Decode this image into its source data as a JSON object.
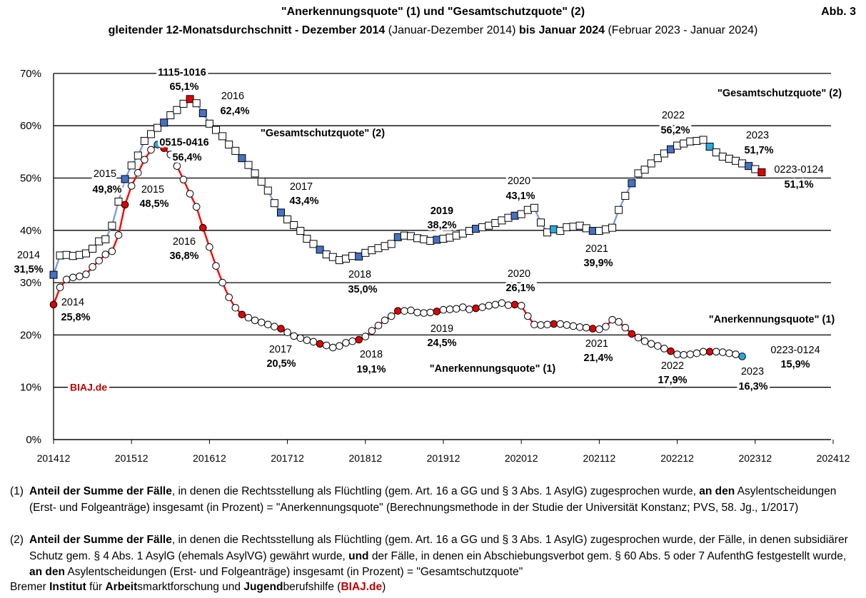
{
  "header": {
    "title": "\"Anerkennungsquote\" (1) und \"Gesamtschutzquote\" (2)",
    "subtitle_bold1": "gleitender 12-Monatsdurchschnitt - Dezember 2014",
    "subtitle_normal1": " (Januar-Dezember 2014) ",
    "subtitle_bold2": "bis Januar 2024",
    "subtitle_normal2": " (Februar 2023 - Januar 2024)",
    "figure_label": "Abb. 3"
  },
  "chart_data": {
    "type": "line",
    "title": "\"Anerkennungsquote\" (1) und \"Gesamtschutzquote\" (2)",
    "x_start": "201412",
    "x_ticks": [
      "201412",
      "201512",
      "201612",
      "201712",
      "201812",
      "201912",
      "202012",
      "202112",
      "202212",
      "202312",
      "202412"
    ],
    "y_ticks": [
      "0%",
      "10%",
      "20%",
      "30%",
      "40%",
      "50%",
      "60%",
      "70%"
    ],
    "ylim": [
      0,
      70
    ],
    "grid": true,
    "watermark": "BIAJ.de",
    "series": [
      {
        "name": "\"Gesamtschutzquote\" (2)",
        "marker": "square",
        "line_color": "#7f9fd3",
        "highlight_color": "#4472c4",
        "values": [
          31.5,
          35.2,
          35.3,
          35.1,
          35.3,
          35.6,
          36.5,
          37.9,
          38.3,
          40.9,
          45.5,
          49.8,
          52.4,
          54.3,
          57.1,
          58.4,
          59.6,
          60.6,
          62.0,
          63.0,
          64.2,
          65.1,
          64.3,
          62.4,
          60.4,
          59.2,
          58.0,
          56.4,
          55.2,
          53.8,
          52.5,
          50.9,
          49.3,
          47.6,
          45.2,
          43.4,
          42.1,
          41.0,
          39.9,
          38.4,
          37.4,
          36.3,
          35.4,
          34.9,
          34.3,
          34.6,
          35.1,
          35.0,
          35.7,
          36.2,
          36.6,
          37.0,
          37.4,
          38.7,
          39.0,
          38.9,
          38.5,
          38.3,
          38.0,
          38.2,
          38.4,
          38.6,
          39.0,
          39.4,
          39.9,
          40.3,
          40.6,
          40.9,
          41.4,
          41.9,
          42.4,
          42.8,
          43.1,
          43.9,
          44.3,
          41.5,
          39.6,
          40.2,
          39.9,
          40.6,
          40.7,
          40.9,
          40.4,
          39.9,
          39.9,
          40.2,
          40.5,
          43.9,
          46.6,
          49.0,
          50.9,
          51.6,
          52.8,
          53.8,
          54.7,
          55.5,
          56.2,
          56.6,
          57.0,
          57.1,
          57.3,
          56.0,
          54.9,
          54.1,
          53.7,
          53.3,
          52.8,
          52.3,
          51.7,
          51.1
        ],
        "highlights": [
          0,
          11,
          17,
          23,
          29,
          35,
          41,
          47,
          53,
          59,
          65,
          71,
          77,
          83,
          89,
          95,
          101,
          107
        ]
      },
      {
        "name": "\"Anerkennungsquote\" (1)",
        "marker": "circle",
        "line_color": "#ff0000",
        "highlight_color": "#e00000",
        "values": [
          25.8,
          29.1,
          30.6,
          31.0,
          31.2,
          31.6,
          33.0,
          34.2,
          35.4,
          36.0,
          39.1,
          44.9,
          48.5,
          51.0,
          53.5,
          55.4,
          56.4,
          55.7,
          54.5,
          52.3,
          49.7,
          47.0,
          44.5,
          40.5,
          36.8,
          33.2,
          30.0,
          27.2,
          25.2,
          23.9,
          23.3,
          22.8,
          22.4,
          22.0,
          21.6,
          21.2,
          20.5,
          19.8,
          19.4,
          19.0,
          18.7,
          18.3,
          18.0,
          17.6,
          17.9,
          18.5,
          18.8,
          19.1,
          19.7,
          20.8,
          21.8,
          22.8,
          23.6,
          24.6,
          24.6,
          24.7,
          24.3,
          24.2,
          24.3,
          24.5,
          24.8,
          24.9,
          25.0,
          25.3,
          24.9,
          25.1,
          25.3,
          25.6,
          25.8,
          26.1,
          25.7,
          25.8,
          25.6,
          23.6,
          22.0,
          21.9,
          22.0,
          22.1,
          22.1,
          21.9,
          21.7,
          21.5,
          21.4,
          21.2,
          21.1,
          21.6,
          22.9,
          22.5,
          21.4,
          20.2,
          19.5,
          18.8,
          18.3,
          17.9,
          17.4,
          16.9,
          16.3,
          16.2,
          16.3,
          16.5,
          16.8,
          16.8,
          16.8,
          16.7,
          16.5,
          16.3,
          15.9
        ],
        "highlights": [
          0,
          11,
          17,
          23,
          29,
          35,
          41,
          47,
          53,
          59,
          65,
          71,
          77,
          83,
          89,
          95,
          101,
          107
        ]
      }
    ],
    "annotations": {
      "gs_2014_year": "2014",
      "gs_2014_val": "31,5%",
      "gs_2015_year": "2015",
      "gs_2015_val": "49,8%",
      "gs_peak_period": "1115-1016",
      "gs_peak_val": "65,1%",
      "gs_2016_year": "2016",
      "gs_2016_val": "62,4%",
      "gs_label_mid": "\"Gesamtschutzquote\" (2)",
      "gs_2017_year": "2017",
      "gs_2017_val": "43,4%",
      "gs_2018_year": "2018",
      "gs_2018_val": "35,0%",
      "gs_2019_year": "2019",
      "gs_2019_val": "38,2%",
      "gs_2020_year": "2020",
      "gs_2020_val": "43,1%",
      "gs_2021_year": "2021",
      "gs_2021_val": "39,9%",
      "gs_2022_year": "2022",
      "gs_2022_val": "56,2%",
      "gs_2023_year": "2023",
      "gs_2023_val": "51,7%",
      "gs_last_period": "0223-0124",
      "gs_last_val": "51,1%",
      "gs_label_right": "\"Gesamtschutzquote\" (2)",
      "aq_2014_year": "2014",
      "aq_2014_val": "25,8%",
      "aq_peak_period": "0515-0416",
      "aq_peak_val": "56,4%",
      "aq_2015_year": "2015",
      "aq_2015_val": "48,5%",
      "aq_2016_year": "2016",
      "aq_2016_val": "36,8%",
      "aq_2017_year": "2017",
      "aq_2017_val": "20,5%",
      "aq_2018_year": "2018",
      "aq_2018_val": "19,1%",
      "aq_2019_year": "2019",
      "aq_2019_val": "24,5%",
      "aq_label_mid": "\"Anerkennungsquote\" (1)",
      "aq_2020_year": "2020",
      "aq_2020_val": "26,1%",
      "aq_2021_year": "2021",
      "aq_2021_val": "21,4%",
      "aq_2022_year": "2022",
      "aq_2022_val": "17,9%",
      "aq_2023_year": "2023",
      "aq_2023_val": "16,3%",
      "aq_last_period": "0223-0124",
      "aq_last_val": "15,9%",
      "aq_label_right": "\"Anerkennungsquote\" (1)"
    }
  },
  "footnotes": {
    "fn1_num": "(1)",
    "fn1_b1": "Anteil der Summe der Fälle",
    "fn1_t1": ", in denen die Rechtsstellung als Flüchtling (gem. Art. 16 a GG und § 3 Abs. 1 AsylG) zugesprochen wurde, ",
    "fn1_b2": "an den",
    "fn1_t2": " Asylentscheidungen (Erst- und Folgeanträge) insgesamt (in Prozent) = \"Anerkennungsquote\" (Berechnungsmethode in der Studie der Universität Konstanz; PVS, 58. Jg., 1/2017)",
    "fn2_num": "(2)",
    "fn2_b1": "Anteil der Summe der Fälle",
    "fn2_t1": ", in denen die Rechtsstellung als Flüchtling (gem. Art. 16 a GG und § 3 Abs. 1 AsylG) zugesprochen wurde, der Fälle, in denen subsidiärer Schutz gem. § 4 Abs. 1 AsylG (ehemals AsylVG) gewährt wurde, ",
    "fn2_b2": "und",
    "fn2_t2": " der Fälle, in denen ein Abschiebungsverbot gem. § 60 Abs. 5 oder 7 AufenthG festgestellt wurde, ",
    "fn2_b3": "an den",
    "fn2_t3": " Asylentscheidungen (Erst- und Folgeanträge) insgesamt (in Prozent) = \"Gesamtschutzquote\"",
    "src_1": "Bremer ",
    "src_b1": "Institut",
    "src_2": " für ",
    "src_b2": "Arbeit",
    "src_3": "smarktforschung und ",
    "src_b3": "Jugend",
    "src_4": "berufshilfe (",
    "src_b4": "BIAJ.de",
    "src_5": ")"
  }
}
